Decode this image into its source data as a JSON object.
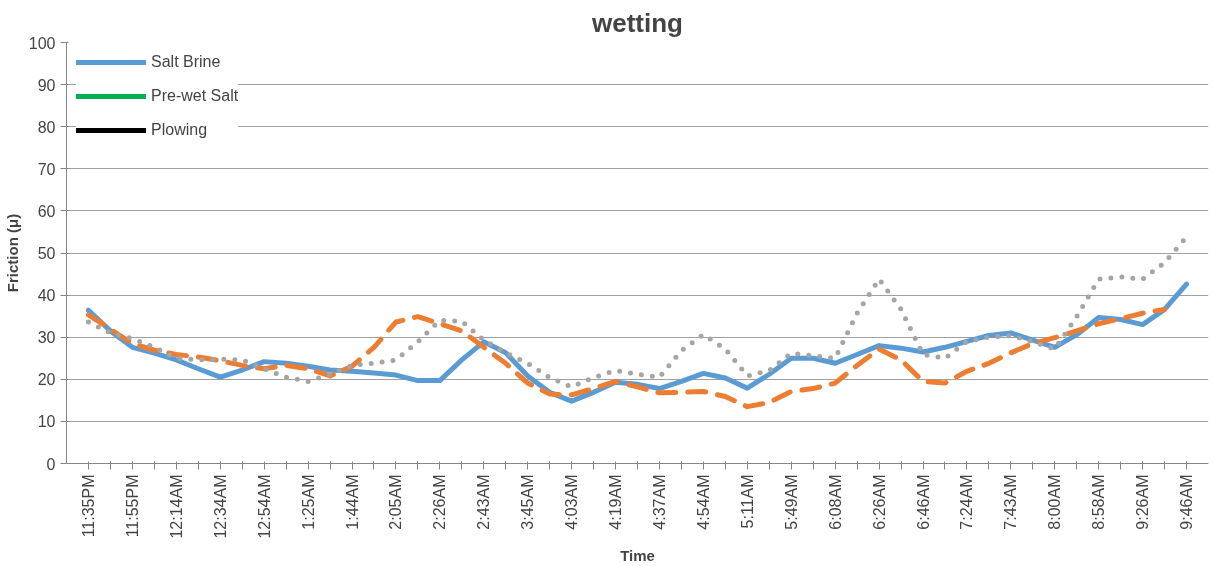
{
  "chart_data": {
    "type": "line",
    "title": "wetting",
    "xlabel": "Time",
    "ylabel": "Friction (μ)",
    "categories": [
      "11:35PM",
      null,
      "11:55PM",
      null,
      "12:14AM",
      null,
      "12:34AM",
      null,
      "12:54AM",
      null,
      "1:25AM",
      null,
      "1:44AM",
      null,
      "2:05AM",
      null,
      "2:26AM",
      null,
      "2:43AM",
      null,
      "3:45AM",
      null,
      "4:03AM",
      null,
      "4:19AM",
      null,
      "4:37AM",
      null,
      "4:54AM",
      null,
      "5:11AM",
      null,
      "5:49AM",
      null,
      "6:08AM",
      null,
      "6:26AM",
      null,
      "6:46AM",
      null,
      "7:24AM",
      null,
      "7:43AM",
      null,
      "8:00AM",
      null,
      "8:58AM",
      null,
      "9:26AM",
      null,
      "9:46AM"
    ],
    "series": [
      {
        "name": "Salt Brine",
        "color": "#5b9bd5",
        "line_style": "solid",
        "values": [
          36.4,
          31.5,
          27.6,
          26.2,
          24.6,
          22.5,
          20.5,
          22.2,
          24.2,
          23.8,
          23.1,
          22.2,
          21.9,
          21.5,
          21.0,
          19.7,
          19.7,
          24.6,
          28.9,
          26.3,
          20.8,
          16.9,
          14.8,
          16.9,
          19.3,
          18.8,
          17.8,
          19.5,
          21.4,
          20.3,
          17.9,
          21.2,
          25.0,
          25.0,
          23.8,
          25.9,
          28.0,
          27.4,
          26.5,
          27.6,
          29.0,
          30.4,
          31.0,
          29.3,
          27.6,
          30.6,
          34.7,
          34.2,
          33.0,
          36.6,
          42.6
        ]
      },
      {
        "color": "#ed7d31",
        "line_style": "dashed",
        "values": [
          35.3,
          31.9,
          28.5,
          26.9,
          25.9,
          25.3,
          24.4,
          23.3,
          22.5,
          23.3,
          22.5,
          20.8,
          23.1,
          27.6,
          33.6,
          34.9,
          33.2,
          31.5,
          27.6,
          23.8,
          19.1,
          16.5,
          16.3,
          17.8,
          19.5,
          18.2,
          16.8,
          16.9,
          17.1,
          15.9,
          13.5,
          14.5,
          17.1,
          17.8,
          19.1,
          23.3,
          27.2,
          24.6,
          19.5,
          19.1,
          21.9,
          23.8,
          26.3,
          28.5,
          29.9,
          31.5,
          33.2,
          34.4,
          35.7,
          36.6,
          null
        ]
      },
      {
        "color": "#a5a5a5",
        "line_style": "dotted",
        "values": [
          33.6,
          31.0,
          29.7,
          27.6,
          25.0,
          24.6,
          24.8,
          24.6,
          22.5,
          20.5,
          19.5,
          21.2,
          23.3,
          23.8,
          24.6,
          28.9,
          34.0,
          33.8,
          29.3,
          26.3,
          23.8,
          20.4,
          18.2,
          20.4,
          22.1,
          21.2,
          20.5,
          26.8,
          30.6,
          27.2,
          20.8,
          22.1,
          26.2,
          25.6,
          25.0,
          35.7,
          43.8,
          36.6,
          25.9,
          25.0,
          29.0,
          30.0,
          30.4,
          28.9,
          27.2,
          34.9,
          43.8,
          44.3,
          43.8,
          47.7,
          53.8
        ]
      },
      {
        "name": "Pre-wet Salt",
        "color": "#00b050",
        "line_style": "solid",
        "values": [
          null,
          null,
          null,
          null,
          null,
          null,
          null,
          null,
          null,
          null,
          null,
          null,
          null,
          null,
          null,
          null,
          null,
          null,
          null,
          null,
          null,
          null,
          null,
          null,
          null,
          null,
          null,
          null,
          null,
          null,
          null,
          null,
          null,
          null,
          null,
          null,
          null,
          null,
          null,
          null,
          null,
          null,
          null,
          null,
          null,
          null,
          null,
          null,
          null,
          null,
          null
        ]
      },
      {
        "name": "Plowing",
        "color": "#000000",
        "line_style": "solid",
        "values": [
          null,
          null,
          null,
          null,
          null,
          null,
          null,
          null,
          null,
          null,
          null,
          null,
          null,
          null,
          null,
          null,
          null,
          null,
          null,
          null,
          null,
          null,
          null,
          null,
          null,
          null,
          null,
          null,
          null,
          null,
          null,
          null,
          null,
          null,
          null,
          null,
          null,
          null,
          null,
          null,
          null,
          null,
          null,
          null,
          null,
          null,
          null,
          null,
          null,
          null,
          null
        ]
      }
    ],
    "ylim": [
      0,
      100
    ],
    "yticks": [
      0,
      10,
      20,
      30,
      40,
      50,
      60,
      70,
      80,
      90,
      100
    ],
    "grid": "y",
    "legend": "top left",
    "marker": "none"
  }
}
